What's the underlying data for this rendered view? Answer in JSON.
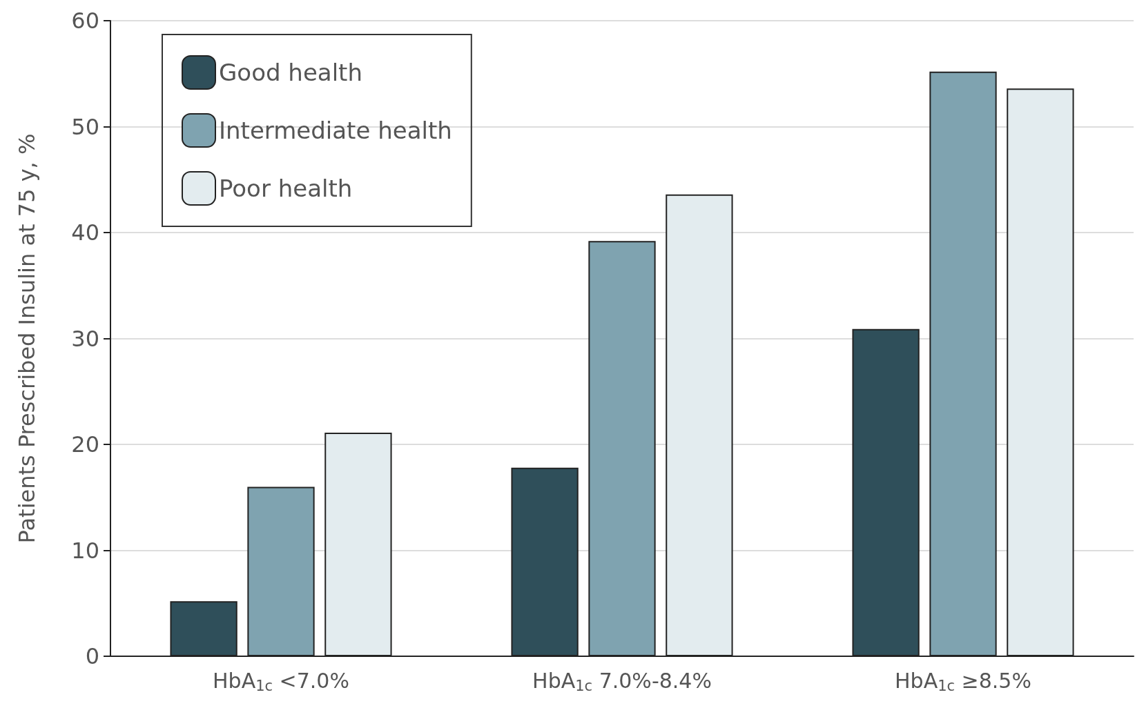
{
  "chart_data": {
    "type": "bar",
    "ylabel": "Patients Prescribed Insulin at 75 y, %",
    "categories": [
      "HbA$_{1c}$ <7.0%",
      "HbA$_{1c}$ 7.0%-8.4%",
      "HbA$_{1c}$ ≥8.5%"
    ],
    "series": [
      {
        "name": "Good health",
        "color": "#2f4f5a",
        "values": [
          5.2,
          17.8,
          30.9
        ]
      },
      {
        "name": "Intermediate health",
        "color": "#7fa3b0",
        "values": [
          16.0,
          39.2,
          55.2
        ]
      },
      {
        "name": "Poor health",
        "color": "#e3ecef",
        "values": [
          21.1,
          43.6,
          53.6
        ]
      }
    ],
    "ylim": [
      0,
      60
    ],
    "yticks": [
      0,
      10,
      20,
      30,
      40,
      50,
      60
    ],
    "grid": "y",
    "legend": "top left"
  }
}
